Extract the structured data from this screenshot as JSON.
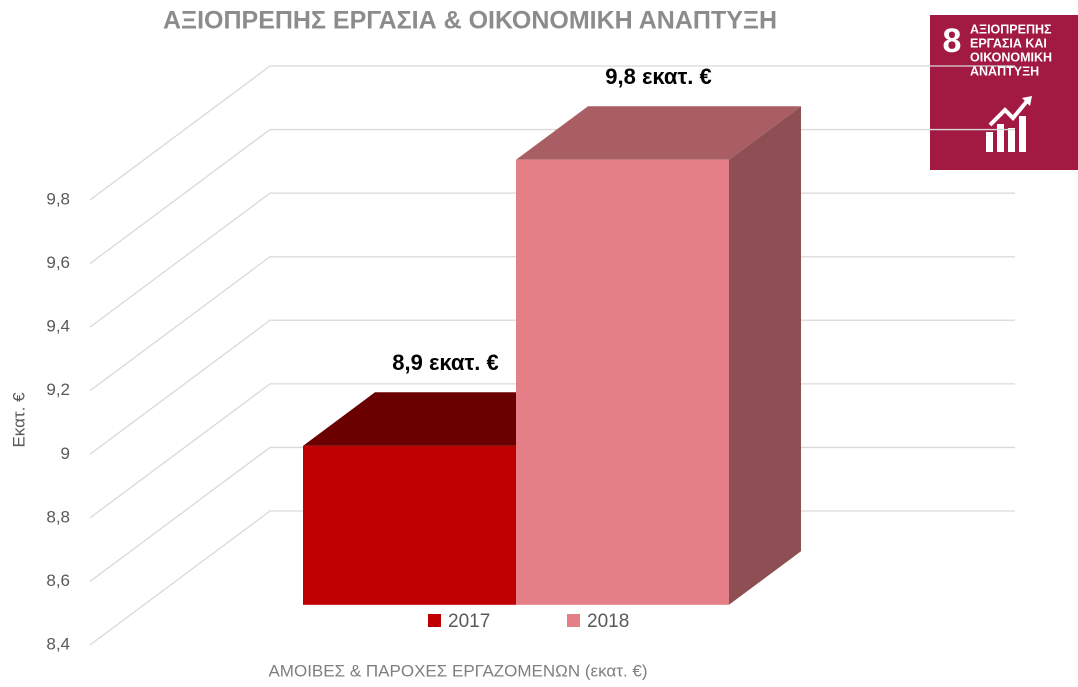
{
  "chart_data": {
    "type": "bar3d",
    "title": "ΑΞΙΟΠΡΕΠΗΣ ΕΡΓΑΣΙΑ & ΟΙΚΟΝΟΜΙΚΗ ΑΝΑΠΤΥΞΗ",
    "y_label": "Εκατ. €",
    "x_label": "ΑΜΟΙΒΕΣ  & ΠΑΡΟΧΕΣ ΕΡΓΑΖΟΜΕΝΩΝ (εκατ. €)",
    "series": [
      {
        "name": "2017",
        "color": "#c00000",
        "values": [
          8.9
        ],
        "value_labels": [
          "8,9 εκατ. €"
        ]
      },
      {
        "name": "2018",
        "color": "#e57f87",
        "values": [
          9.8
        ],
        "value_labels": [
          "9,8 εκατ. €"
        ]
      }
    ],
    "ylim": [
      8.4,
      9.8
    ],
    "yticks": [
      {
        "value": 8.4,
        "label": "8,4"
      },
      {
        "value": 8.6,
        "label": "8,6"
      },
      {
        "value": 8.8,
        "label": "8,8"
      },
      9,
      {
        "value": 9.2,
        "label": "9,2"
      },
      {
        "value": 9.4,
        "label": "9,4"
      },
      {
        "value": 9.6,
        "label": "9,6"
      },
      {
        "value": 9.8,
        "label": "9,8"
      }
    ],
    "grid": true
  },
  "logo": {
    "number": "8",
    "lines": [
      "ΑΞΙΟΠΡΕΠΗΣ",
      "ΕΡΓΑΣΙΑ ΚΑΙ",
      "ΟΙΚΟΝΟΜΙΚΗ",
      "ΑΝΑΠΤΥΞΗ"
    ]
  }
}
